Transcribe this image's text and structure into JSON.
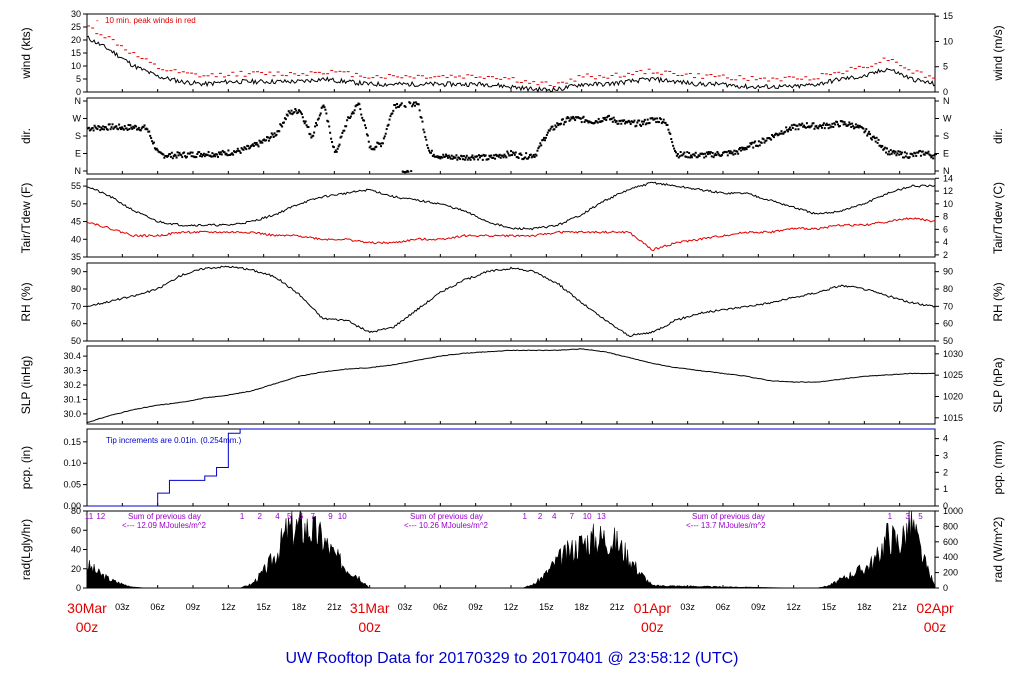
{
  "footer": "UW Rooftop Data for 20170329  to  20170401 @ 23:58:12  (UTC)",
  "colors": {
    "black": "#000000",
    "red": "#e00000",
    "blue": "#0000cc",
    "purple": "#9900cc"
  },
  "x_day_labels": [
    {
      "day": "30Mar",
      "hour": "00z",
      "h": 0
    },
    {
      "day": "31Mar",
      "hour": "00z",
      "h": 24
    },
    {
      "day": "01Apr",
      "hour": "00z",
      "h": 48
    },
    {
      "day": "02Apr",
      "hour": "00z",
      "h": 72
    }
  ],
  "x_hour_labels": [
    "03z",
    "06z",
    "09z",
    "12z",
    "15z",
    "18z",
    "21z"
  ],
  "chart_data": [
    {
      "type": "line",
      "id": "wind",
      "ylabel_left": "wind (kts)",
      "ylabel_right": "wind (m/s)",
      "ylim": [
        0,
        30
      ],
      "yticks_left": [
        "0",
        "5",
        "10",
        "15",
        "20",
        "25",
        "30"
      ],
      "yticks_right": [
        "0",
        "5",
        "10",
        "15"
      ],
      "right_scale": 0.5144,
      "annotation": "10 min. peak winds in red",
      "series": [
        {
          "x": [
            0,
            2,
            4,
            6,
            8,
            10,
            12,
            14,
            16,
            18,
            20,
            22,
            24,
            26,
            28,
            30,
            32,
            34,
            36,
            38,
            40,
            42,
            44,
            46,
            48,
            50,
            52,
            54,
            56,
            58,
            60,
            62,
            64,
            66,
            68,
            70,
            72
          ],
          "values": [
            21,
            16,
            10,
            6,
            4,
            3,
            4,
            4,
            4,
            4,
            5,
            4,
            3,
            3,
            3,
            3,
            3,
            3,
            2,
            1,
            1,
            3,
            3,
            4,
            5,
            4,
            3,
            3,
            2,
            2,
            2,
            3,
            5,
            6,
            9,
            5,
            3
          ]
        },
        {
          "x": [
            0,
            2,
            4,
            6,
            8,
            10,
            12,
            14,
            16,
            18,
            20,
            22,
            24,
            26,
            28,
            30,
            32,
            34,
            36,
            38,
            40,
            42,
            44,
            46,
            48,
            50,
            52,
            54,
            56,
            58,
            60,
            62,
            64,
            66,
            68,
            70,
            72
          ],
          "values": [
            25,
            20,
            14,
            9,
            7,
            6,
            7,
            7,
            7,
            7,
            8,
            7,
            6,
            6,
            6,
            6,
            6,
            6,
            5,
            3,
            3,
            6,
            6,
            7,
            8,
            7,
            6,
            6,
            5,
            5,
            5,
            6,
            8,
            10,
            13,
            8,
            5
          ]
        }
      ]
    },
    {
      "type": "scatter",
      "id": "dir",
      "ylabel_left": "dir.",
      "ylabel_right": "dir.",
      "yticks_left": [
        "N",
        "W",
        "S",
        "E",
        "N"
      ],
      "yticks_right": [
        "N",
        "W",
        "S",
        "E",
        "N"
      ],
      "ylim": [
        0,
        360
      ],
      "series": [
        {
          "x": [
            0,
            1,
            2,
            3,
            4,
            5,
            6,
            7,
            8,
            9,
            10,
            11,
            12,
            13,
            14,
            15,
            16,
            17,
            18,
            19,
            20,
            21,
            22,
            23,
            24,
            25,
            26,
            27,
            28,
            29,
            30,
            31,
            32,
            33,
            34,
            35,
            36,
            37,
            38,
            39,
            40,
            41,
            42,
            43,
            44,
            45,
            46,
            47,
            48,
            49,
            50,
            51,
            52,
            53,
            54,
            55,
            56,
            57,
            58,
            59,
            60,
            61,
            62,
            63,
            64,
            65,
            66,
            67,
            68,
            69,
            70,
            71,
            72
          ],
          "values": [
            225,
            228,
            232,
            228,
            230,
            225,
            90,
            85,
            88,
            90,
            95,
            92,
            100,
            110,
            130,
            160,
            200,
            300,
            320,
            180,
            350,
            90,
            260,
            355,
            120,
            150,
            345,
            350,
            355,
            100,
            80,
            75,
            75,
            80,
            70,
            85,
            95,
            80,
            90,
            200,
            250,
            275,
            270,
            260,
            280,
            260,
            250,
            250,
            270,
            265,
            90,
            88,
            85,
            90,
            95,
            100,
            130,
            150,
            180,
            210,
            230,
            240,
            235,
            240,
            250,
            240,
            210,
            160,
            100,
            90,
            85,
            100,
            80
          ]
        }
      ]
    },
    {
      "type": "line",
      "id": "temp",
      "ylabel_left": "Tair/Tdew (F)",
      "ylabel_right": "Tair/Tdew (C)",
      "ylim": [
        35,
        57
      ],
      "yticks_left": [
        "35",
        "40",
        "45",
        "50",
        "55"
      ],
      "yticks_right": [
        "2",
        "4",
        "6",
        "8",
        "10",
        "12",
        "14"
      ],
      "series": [
        {
          "x": [
            0,
            2,
            4,
            6,
            8,
            10,
            12,
            14,
            16,
            18,
            20,
            22,
            24,
            26,
            28,
            30,
            32,
            34,
            36,
            38,
            40,
            42,
            44,
            46,
            48,
            50,
            52,
            54,
            56,
            58,
            60,
            62,
            64,
            66,
            68,
            70,
            72
          ],
          "values": [
            55,
            52,
            48,
            45,
            44,
            44,
            44,
            45,
            47,
            50,
            52,
            53,
            54,
            52,
            51,
            50,
            48,
            45,
            43,
            43,
            44,
            47,
            51,
            54,
            56,
            55,
            54,
            53,
            53,
            51,
            49,
            47,
            48,
            50,
            53,
            55,
            55
          ]
        },
        {
          "x": [
            0,
            2,
            4,
            6,
            8,
            10,
            12,
            14,
            16,
            18,
            20,
            22,
            24,
            26,
            28,
            30,
            32,
            34,
            36,
            38,
            40,
            42,
            44,
            46,
            48,
            50,
            52,
            54,
            56,
            58,
            60,
            62,
            64,
            66,
            68,
            70,
            72
          ],
          "values": [
            45,
            43,
            41,
            41,
            42,
            42,
            42,
            42,
            41,
            41,
            40,
            40,
            39,
            39,
            40,
            40,
            41,
            41,
            41,
            41,
            42,
            42,
            42,
            42,
            37,
            39,
            40,
            41,
            42,
            42,
            43,
            43,
            44,
            44,
            45,
            46,
            45
          ]
        }
      ]
    },
    {
      "type": "line",
      "id": "rh",
      "ylabel_left": "RH (%)",
      "ylabel_right": "RH (%)",
      "ylim": [
        50,
        95
      ],
      "yticks_left": [
        "50",
        "60",
        "70",
        "80",
        "90"
      ],
      "yticks_right": [
        "50",
        "60",
        "70",
        "80",
        "90"
      ],
      "series": [
        {
          "x": [
            0,
            2,
            4,
            6,
            8,
            10,
            12,
            14,
            16,
            18,
            20,
            22,
            24,
            26,
            28,
            30,
            32,
            34,
            36,
            38,
            40,
            42,
            44,
            46,
            48,
            50,
            52,
            54,
            56,
            58,
            60,
            62,
            64,
            66,
            68,
            70,
            72
          ],
          "values": [
            70,
            73,
            76,
            80,
            88,
            92,
            93,
            91,
            87,
            77,
            63,
            62,
            55,
            58,
            68,
            78,
            85,
            90,
            92,
            90,
            83,
            72,
            62,
            53,
            55,
            62,
            66,
            68,
            70,
            72,
            75,
            78,
            82,
            80,
            76,
            72,
            70
          ]
        }
      ]
    },
    {
      "type": "line",
      "id": "slp",
      "ylabel_left": "SLP (inHg)",
      "ylabel_right": "SLP (hPa)",
      "ylim": [
        29.93,
        30.47
      ],
      "yticks_left": [
        "30.0",
        "30.1",
        "30.2",
        "30.3",
        "30.4"
      ],
      "yticks_right": [
        "1015",
        "1020",
        "1025",
        "1030"
      ],
      "series": [
        {
          "x": [
            0,
            2,
            4,
            6,
            8,
            10,
            12,
            14,
            16,
            18,
            20,
            22,
            24,
            26,
            28,
            30,
            32,
            34,
            36,
            38,
            40,
            42,
            44,
            46,
            48,
            50,
            52,
            54,
            56,
            58,
            60,
            62,
            64,
            66,
            68,
            70,
            72
          ],
          "values": [
            29.94,
            29.99,
            30.03,
            30.06,
            30.08,
            30.11,
            30.13,
            30.16,
            30.21,
            30.26,
            30.29,
            30.31,
            30.32,
            30.34,
            30.37,
            30.4,
            30.42,
            30.43,
            30.44,
            30.44,
            30.44,
            30.45,
            30.43,
            30.39,
            30.35,
            30.32,
            30.3,
            30.28,
            30.26,
            30.23,
            30.22,
            30.22,
            30.24,
            30.26,
            30.27,
            30.28,
            30.28
          ]
        }
      ]
    },
    {
      "type": "line",
      "id": "pcp",
      "ylabel_left": "pcp. (in)",
      "ylabel_right": "pcp. (mm)",
      "ylim": [
        0,
        0.18
      ],
      "yticks_left": [
        "0.00",
        "0.05",
        "0.10",
        "0.15"
      ],
      "yticks_right": [
        "0",
        "1",
        "2",
        "3",
        "4"
      ],
      "annotation": "Tip increments are 0.01in. (0.254mm.)",
      "series": [
        {
          "x": [
            0,
            5,
            6,
            7,
            8,
            10,
            11,
            12,
            12.5,
            13,
            14,
            16,
            48,
            72
          ],
          "values": [
            0,
            0,
            0.03,
            0.06,
            0.06,
            0.07,
            0.09,
            0.17,
            0.17,
            0.18,
            0.18,
            0.18,
            0.18,
            0.18
          ]
        }
      ]
    },
    {
      "type": "area",
      "id": "rad",
      "ylabel_left": "rad(Lgly/hr)",
      "ylabel_right": "rad (W/m^2)",
      "ylim": [
        0,
        80
      ],
      "yticks_left": [
        "0",
        "20",
        "40",
        "60",
        "80"
      ],
      "yticks_right": [
        "0",
        "200",
        "400",
        "600",
        "800",
        "1000"
      ],
      "series": [
        {
          "x": [
            0,
            1,
            2,
            3,
            4,
            5,
            6,
            12,
            13,
            14,
            15,
            16,
            17,
            18,
            19,
            20,
            21,
            22,
            23,
            24,
            36,
            37,
            38,
            39,
            40,
            41,
            42,
            43,
            44,
            45,
            46,
            47,
            48,
            60,
            61,
            62,
            63,
            64,
            65,
            66,
            67,
            68,
            69,
            70,
            71,
            72
          ],
          "values": [
            28,
            18,
            10,
            5,
            1,
            0,
            0,
            0,
            0,
            5,
            20,
            40,
            70,
            75,
            72,
            60,
            40,
            25,
            15,
            0,
            0,
            0,
            5,
            18,
            35,
            45,
            55,
            60,
            62,
            55,
            38,
            18,
            3,
            0,
            0,
            0,
            3,
            10,
            18,
            24,
            35,
            65,
            55,
            80,
            35,
            2
          ]
        }
      ],
      "sums": [
        {
          "label": "Sum of previous day",
          "value": "<--- 12.09 MJoules/m^2"
        },
        {
          "label": "Sum of previous day",
          "value": "<--- 10.26 MJoules/m^2"
        },
        {
          "label": "Sum of previous day",
          "value": "<--- 13.7 MJoules/m^2"
        }
      ],
      "hour_marks": [
        {
          "h": 0,
          "t": "11"
        },
        {
          "h": 1,
          "t": "12"
        },
        {
          "h": 13,
          "t": "1"
        },
        {
          "h": 14.5,
          "t": "2"
        },
        {
          "h": 16,
          "t": "4"
        },
        {
          "h": 17,
          "t": "5"
        },
        {
          "h": 18,
          "t": "6"
        },
        {
          "h": 19,
          "t": "7"
        },
        {
          "h": 20.5,
          "t": "9"
        },
        {
          "h": 21.5,
          "t": "10"
        },
        {
          "h": 37,
          "t": "1"
        },
        {
          "h": 38.3,
          "t": "2"
        },
        {
          "h": 39.5,
          "t": "4"
        },
        {
          "h": 41,
          "t": "7"
        },
        {
          "h": 42.3,
          "t": "10"
        },
        {
          "h": 43.5,
          "t": "13"
        },
        {
          "h": 68,
          "t": "1"
        },
        {
          "h": 69.5,
          "t": "3"
        },
        {
          "h": 70.6,
          "t": "5"
        }
      ]
    }
  ]
}
